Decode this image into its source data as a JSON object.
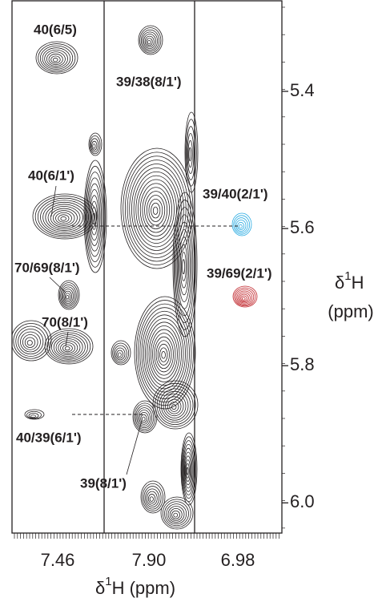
{
  "chart_data": {
    "type": "contour",
    "panels": [
      {
        "x_label": "7.46"
      },
      {
        "x_label": "7.90"
      },
      {
        "x_label": "6.98"
      }
    ],
    "x_label": {
      "symbol": "δ",
      "sup": "1",
      "nucleus": "H",
      "unit": "(ppm)"
    },
    "y_label": {
      "symbol": "δ",
      "sup": "1",
      "nucleus": "H",
      "unit": "(ppm)"
    },
    "ylim": [
      5.268,
      6.044
    ],
    "yticks": [
      5.4,
      5.6,
      5.8,
      {
        "value": 6,
        "label": "6.0"
      }
    ],
    "annotations": [
      "40(6/5)",
      "39/38(8/1')",
      "40(6/1')",
      "39/40(2/1')",
      "70/69(8/1')",
      "39/69(2/1')",
      "70(8/1')",
      "40/39(6/1')",
      "39(8/1')"
    ]
  }
}
